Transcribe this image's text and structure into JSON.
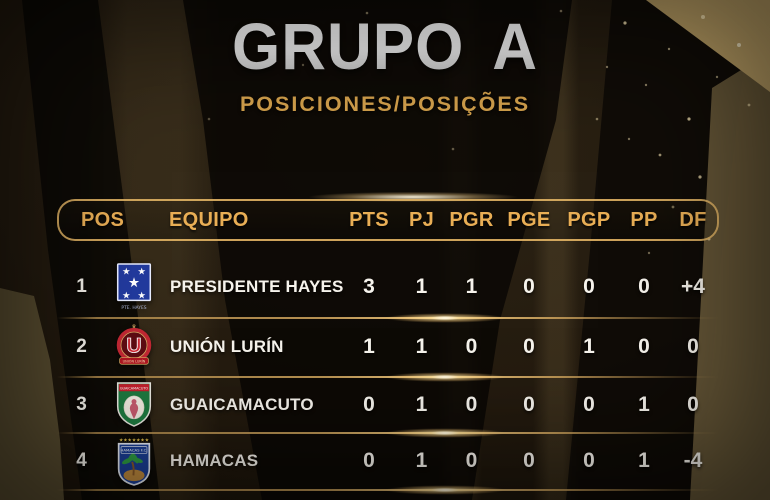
{
  "header": {
    "title": "GRUPO A",
    "subtitle": "POSICIONES/POSIÇÕES"
  },
  "standings": {
    "columns": [
      "POS",
      "EQUIPO",
      "PTS",
      "PJ",
      "PGR",
      "PGE",
      "PGP",
      "PP",
      "DF"
    ],
    "rows": [
      {
        "pos": "1",
        "team": "PRESIDENTE HAYES",
        "crest": "presidente-hayes-crest",
        "crest_label": "PTE. HAYES",
        "stats": [
          "3",
          "1",
          "1",
          "0",
          "0",
          "0",
          "+4"
        ]
      },
      {
        "pos": "2",
        "team": "UNIÓN LURÍN",
        "crest": "union-lurin-crest",
        "crest_label": "UNIÓN LURÍN",
        "stats": [
          "1",
          "1",
          "0",
          "0",
          "1",
          "0",
          "0"
        ]
      },
      {
        "pos": "3",
        "team": "GUAICAMACUTO",
        "crest": "guaicamacuto-crest",
        "crest_label": "GUAICAMACUTO",
        "stats": [
          "0",
          "1",
          "0",
          "0",
          "0",
          "1",
          "0"
        ]
      },
      {
        "pos": "4",
        "team": "HAMACAS",
        "crest": "hamacas-crest",
        "crest_label": "HAMACAS F.C.",
        "stats": [
          "0",
          "1",
          "0",
          "0",
          "0",
          "1",
          "-4"
        ]
      }
    ]
  },
  "colors": {
    "background_brown": "#241b0f",
    "band_black": "#080604",
    "band_tan": "#6a5b3a",
    "corner_gold": "#c4a76a",
    "header_gold": "#e9ae55",
    "subtitle_gold": "#d4a14c",
    "divider_gold": "#e9c47d",
    "text_white": "#f6f3ec",
    "crest_hayes_blue": "#223a9e",
    "crest_lurin_red": "#c22733",
    "crest_guaicamacuto_green": "#1e7a40",
    "crest_hamacas_blue": "#1c3f96"
  }
}
